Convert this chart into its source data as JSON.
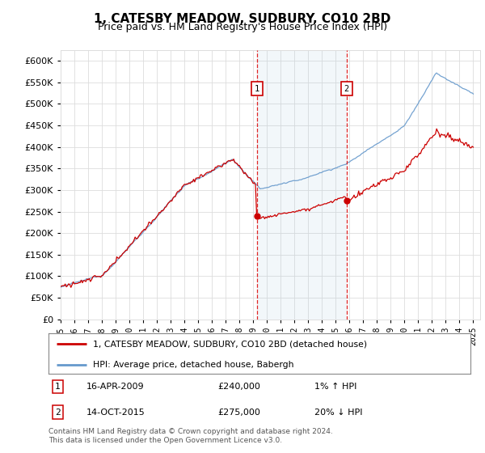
{
  "title": "1, CATESBY MEADOW, SUDBURY, CO10 2BD",
  "subtitle": "Price paid vs. HM Land Registry's House Price Index (HPI)",
  "ytick_values": [
    0,
    50000,
    100000,
    150000,
    200000,
    250000,
    300000,
    350000,
    400000,
    450000,
    500000,
    550000,
    600000
  ],
  "ylim": [
    0,
    625000
  ],
  "xlim_start": 1995.0,
  "xlim_end": 2025.5,
  "hpi_color": "#6699cc",
  "hpi_fill_color": "#d6e8f5",
  "price_color": "#cc0000",
  "background_color": "#ffffff",
  "grid_color": "#dddddd",
  "transaction1_x": 2009.29,
  "transaction1_y": 240000,
  "transaction2_x": 2015.79,
  "transaction2_y": 275000,
  "legend_items": [
    "1, CATESBY MEADOW, SUDBURY, CO10 2BD (detached house)",
    "HPI: Average price, detached house, Babergh"
  ],
  "annotation1": [
    "1",
    "16-APR-2009",
    "£240,000",
    "1% ↑ HPI"
  ],
  "annotation2": [
    "2",
    "14-OCT-2015",
    "£275,000",
    "20% ↓ HPI"
  ],
  "footnote": "Contains HM Land Registry data © Crown copyright and database right 2024.\nThis data is licensed under the Open Government Licence v3.0.",
  "title_fontsize": 11,
  "subtitle_fontsize": 9,
  "tick_fontsize": 8
}
